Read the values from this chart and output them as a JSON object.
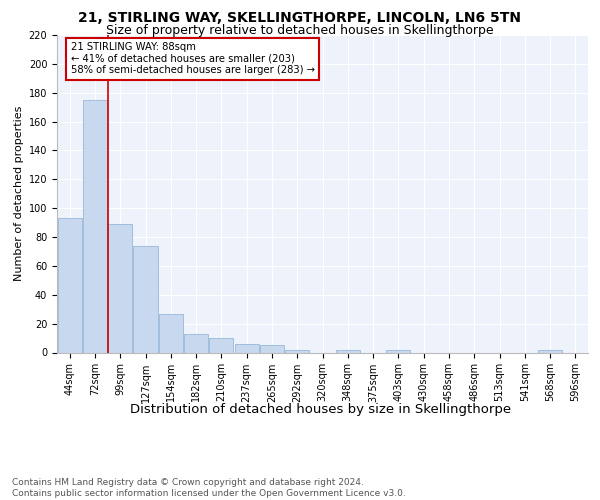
{
  "title1": "21, STIRLING WAY, SKELLINGTHORPE, LINCOLN, LN6 5TN",
  "title2": "Size of property relative to detached houses in Skellingthorpe",
  "xlabel": "Distribution of detached houses by size in Skellingthorpe",
  "ylabel": "Number of detached properties",
  "categories": [
    "44sqm",
    "72sqm",
    "99sqm",
    "127sqm",
    "154sqm",
    "182sqm",
    "210sqm",
    "237sqm",
    "265sqm",
    "292sqm",
    "320sqm",
    "348sqm",
    "375sqm",
    "403sqm",
    "430sqm",
    "458sqm",
    "486sqm",
    "513sqm",
    "541sqm",
    "568sqm",
    "596sqm"
  ],
  "values": [
    93,
    175,
    89,
    74,
    27,
    13,
    10,
    6,
    5,
    2,
    0,
    2,
    0,
    2,
    0,
    0,
    0,
    0,
    0,
    2,
    0
  ],
  "bar_color": "#c8d8ee",
  "bar_edge_color": "#9ab8d8",
  "red_line_x": 1.5,
  "annotation_text": "21 STIRLING WAY: 88sqm\n← 41% of detached houses are smaller (203)\n58% of semi-detached houses are larger (283) →",
  "annotation_box_color": "#ffffff",
  "annotation_box_edge": "#cc0000",
  "ylim": [
    0,
    220
  ],
  "yticks": [
    0,
    20,
    40,
    60,
    80,
    100,
    120,
    140,
    160,
    180,
    200,
    220
  ],
  "footnote": "Contains HM Land Registry data © Crown copyright and database right 2024.\nContains public sector information licensed under the Open Government Licence v3.0.",
  "bg_color": "#eef2fa",
  "grid_color": "#ffffff",
  "title1_fontsize": 10,
  "title2_fontsize": 9,
  "xlabel_fontsize": 9.5,
  "ylabel_fontsize": 8,
  "tick_fontsize": 7,
  "footnote_fontsize": 6.5
}
